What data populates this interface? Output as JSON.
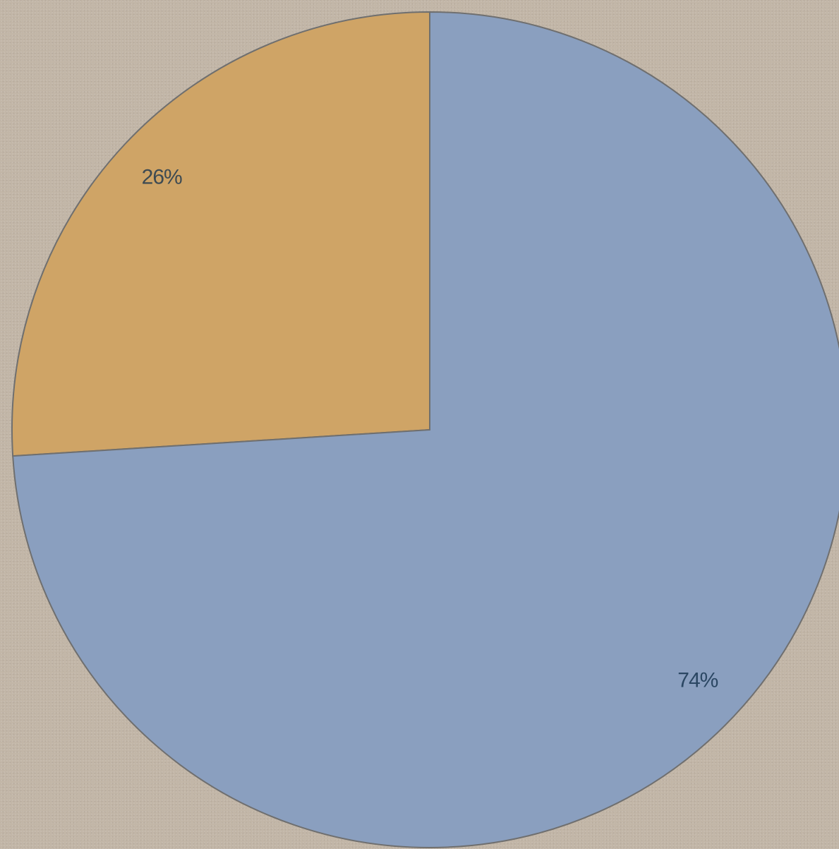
{
  "chart_data": {
    "type": "pie",
    "title": "",
    "slices": [
      {
        "label": "26%",
        "value": 26,
        "color": "#cfa466",
        "label_color": "#3d4a52"
      },
      {
        "label": "74%",
        "value": 74,
        "color": "#8a9fbf",
        "label_color": "#2b4763"
      }
    ],
    "start_angle_deg": 0,
    "direction": "counterclockwise",
    "legend": "none"
  }
}
